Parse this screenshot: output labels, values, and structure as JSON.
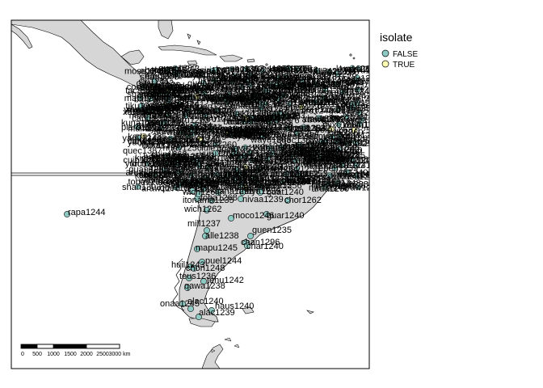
{
  "legend": {
    "title": "isolate",
    "items": [
      {
        "label": "FALSE",
        "color": "#8fc9c3"
      },
      {
        "label": "TRUE",
        "color": "#ffffb3"
      }
    ]
  },
  "scalebar": {
    "labels": [
      "0",
      "500",
      "1000",
      "1500",
      "2000",
      "2500",
      "3000 km"
    ]
  },
  "colors": {
    "land": "#d6d6d6",
    "coast": "#000000",
    "frame": "#000000"
  },
  "clutter_labels": [
    "ayou1238",
    "yuca1254",
    "warr1240",
    "coco1261",
    "boru1252",
    "mixe1284",
    "huav1256",
    "kuna1268",
    "epen1239",
    "muin1242",
    "guah1255",
    "yuru1263",
    "emb1241",
    "cofa1242",
    "siri1241",
    "piaro1243",
    "quec1387",
    "kich1262",
    "secoya1240",
    "tuca1252",
    "cuib1242",
    "wayu1243",
    "arua1260",
    "maku1268",
    "yagu1244",
    "tiku1237",
    "shan1303",
    "urar1246",
    "cand1248",
    "asha1243",
    "yine1238",
    "mats1244",
    "tern1248",
    "baur1253",
    "kabi1260",
    "taca1256",
    "guar1292",
    "mose1249",
    "ayor1240",
    "chip1262",
    "lule1254",
    "toba1269",
    "kada1285",
    "bolo1263",
    "suru1262",
    "xava1240",
    "bora1263",
    "araw1276",
    "nukak1236"
  ],
  "labels": [
    {
      "text": "rapa1244",
      "isolate": false
    },
    {
      "text": "sout2996",
      "isolate": false
    },
    {
      "text": "wich1264",
      "isolate": false
    },
    {
      "text": "itonama1235",
      "isolate": false
    },
    {
      "text": "toba1268",
      "isolate": false
    },
    {
      "text": "wich1262",
      "isolate": false
    },
    {
      "text": "mill1237",
      "isolate": false
    },
    {
      "text": "moco1246",
      "isolate": false
    },
    {
      "text": "guar1240",
      "isolate": false
    },
    {
      "text": "alle1238",
      "isolate": false
    },
    {
      "text": "guen1235",
      "isolate": false
    },
    {
      "text": "chan1296",
      "isolate": false
    },
    {
      "text": "char1240",
      "isolate": false
    },
    {
      "text": "mapu1245",
      "isolate": false
    },
    {
      "text": "huil1243",
      "isolate": false
    },
    {
      "text": "puel1244",
      "isolate": false
    },
    {
      "text": "chon1248",
      "isolate": false
    },
    {
      "text": "teus1236",
      "isolate": false
    },
    {
      "text": "tehu1242",
      "isolate": false
    },
    {
      "text": "qawa1238",
      "isolate": false
    },
    {
      "text": "onaa1245",
      "isolate": false
    },
    {
      "text": "alac1240",
      "isolate": false
    },
    {
      "text": "haus1240",
      "isolate": false
    },
    {
      "text": "alac1239",
      "isolate": false
    },
    {
      "text": "sana1298",
      "isolate": false
    },
    {
      "text": "nivaa1239",
      "isolate": false
    },
    {
      "text": "chor1262",
      "isolate": false
    },
    {
      "text": "mbya1239",
      "isolate": false
    },
    {
      "text": "guat1240",
      "isolate": false
    }
  ]
}
